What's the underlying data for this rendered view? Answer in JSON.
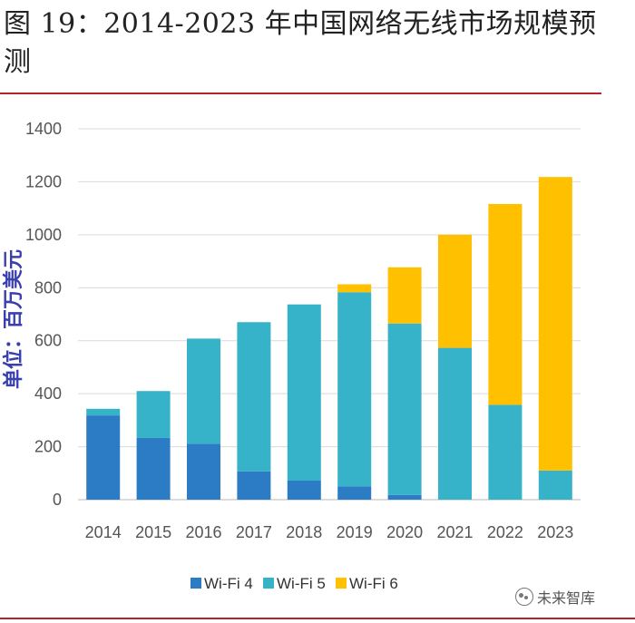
{
  "title": "图 19：2014-2023 年中国网络无线市场规模预测",
  "watermark": "未来智库",
  "chart_data": {
    "type": "bar",
    "stacked": true,
    "categories": [
      "2014",
      "2015",
      "2016",
      "2017",
      "2018",
      "2019",
      "2020",
      "2021",
      "2022",
      "2023"
    ],
    "series": [
      {
        "name": "Wi-Fi 4",
        "color": "#2b7cc4",
        "values": [
          318,
          233,
          211,
          107,
          72,
          50,
          18,
          0,
          0,
          0
        ]
      },
      {
        "name": "Wi-Fi 5",
        "color": "#36b3c8",
        "values": [
          25,
          177,
          397,
          563,
          665,
          733,
          647,
          573,
          358,
          110
        ]
      },
      {
        "name": "Wi-Fi 6",
        "color": "#ffc000",
        "values": [
          0,
          0,
          0,
          0,
          0,
          30,
          212,
          427,
          758,
          1108
        ]
      }
    ],
    "ylabel": "单位：百万美元",
    "ylim": [
      0,
      1400
    ],
    "yticks": [
      0,
      200,
      400,
      600,
      800,
      1000,
      1200,
      1400
    ],
    "grid": true,
    "legend_position": "bottom"
  }
}
